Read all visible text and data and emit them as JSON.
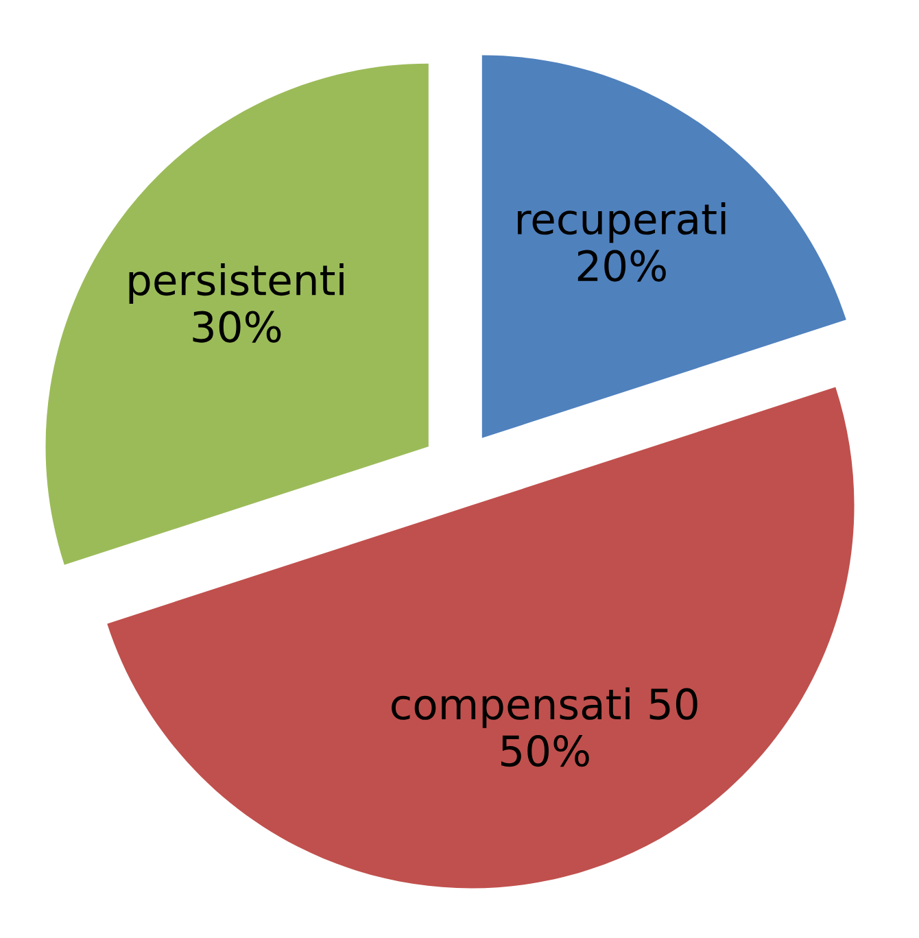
{
  "chart_data": {
    "type": "pie",
    "categories": [
      "recuperati",
      "compensati 50",
      "persistenti"
    ],
    "values": [
      20,
      50,
      30
    ],
    "value_labels": [
      "20%",
      "50%",
      "30%"
    ],
    "colors": [
      "#4f81bd",
      "#c0504d",
      "#9bbb59"
    ],
    "legend": false
  }
}
